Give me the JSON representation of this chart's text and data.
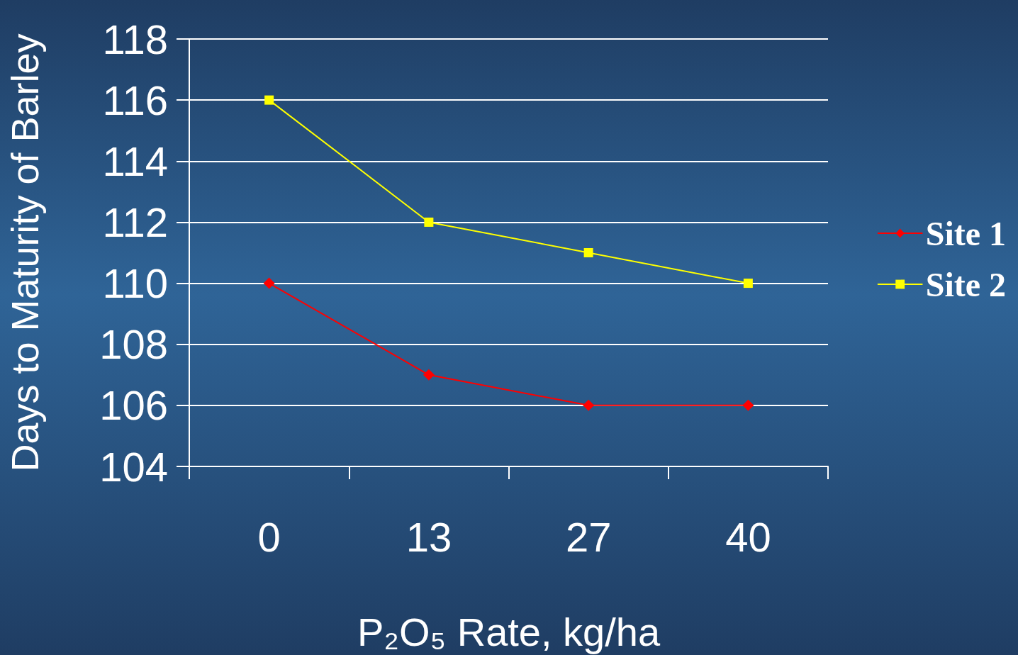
{
  "chart_data": {
    "type": "line",
    "xlabel": "P₂O₅ Rate, kg/ha",
    "ylabel": "Days to Maturity of Barley",
    "categories": [
      "0",
      "13",
      "27",
      "40"
    ],
    "series": [
      {
        "name": "Site 1",
        "color": "#ff0000",
        "marker": "diamond",
        "values": [
          110,
          107,
          106,
          106
        ]
      },
      {
        "name": "Site 2",
        "color": "#ffff00",
        "marker": "square",
        "values": [
          116,
          112,
          111,
          110
        ]
      }
    ],
    "ylim": [
      104,
      118
    ],
    "yticks": [
      104,
      106,
      108,
      110,
      112,
      114,
      116,
      118
    ],
    "grid": "y",
    "legend": "right",
    "line_style": "solid"
  }
}
